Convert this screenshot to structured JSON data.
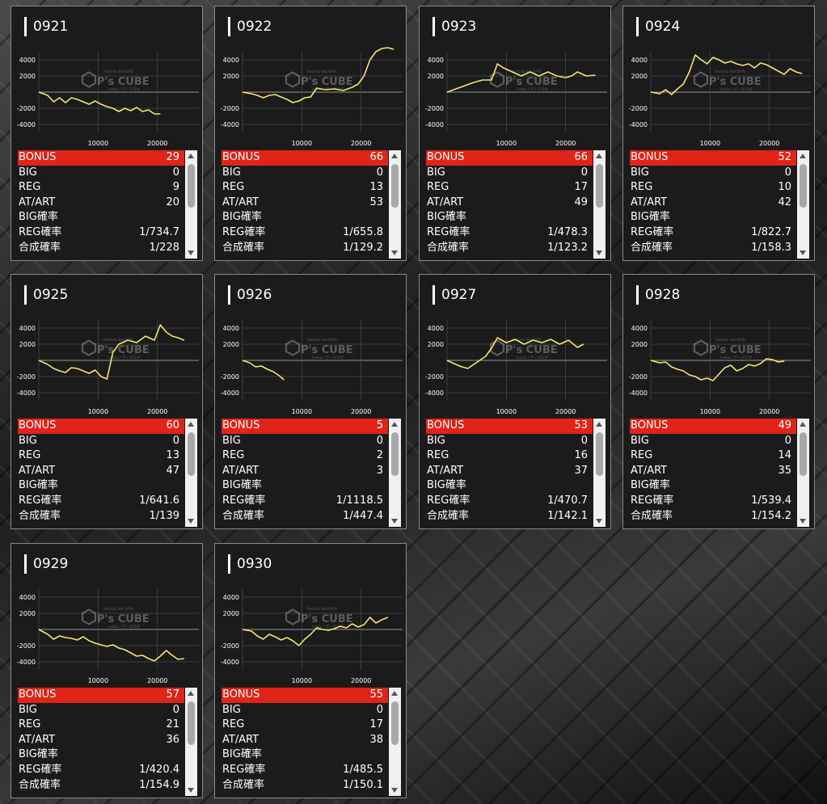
{
  "colors": {
    "accent": "#e02418",
    "line": "#f5e66a",
    "panel": "#1b1b1b"
  },
  "watermark": {
    "brand": "P's CUBE",
    "tagline": "Pachislo Slot DATA",
    "sub": "index / データロボ"
  },
  "stat_labels": {
    "bonus": "BONUS",
    "big": "BIG",
    "reg": "REG",
    "atart": "AT/ART",
    "big_rate": "BIG確率",
    "reg_rate": "REG確率",
    "total_rate": "合成確率"
  },
  "axis": {
    "y_ticks": [
      "4000",
      "2000",
      "-2000",
      "-4000"
    ],
    "x_ticks": [
      "10000",
      "20000"
    ]
  },
  "chart_data": [
    {
      "type": "line",
      "label": "0921",
      "xlim": [
        0,
        27000
      ],
      "ylim": [
        -5000,
        5000
      ],
      "x": [
        0,
        1500,
        2500,
        3500,
        4500,
        5500,
        6500,
        7500,
        8500,
        9500,
        10500,
        11500,
        12500,
        13500,
        14500,
        15500,
        16500,
        17500,
        18500,
        19500,
        20500
      ],
      "y": [
        0,
        -400,
        -1200,
        -700,
        -1300,
        -700,
        -900,
        -1200,
        -1500,
        -1100,
        -1500,
        -1800,
        -2000,
        -2400,
        -2000,
        -2300,
        -1900,
        -2400,
        -2200,
        -2700,
        -2700
      ]
    },
    {
      "type": "line",
      "label": "0922",
      "xlim": [
        0,
        27000
      ],
      "ylim": [
        -5000,
        5000
      ],
      "x": [
        0,
        1500,
        2500,
        3500,
        4500,
        5500,
        6500,
        7500,
        8500,
        9500,
        10500,
        11500,
        12500,
        14000,
        15500,
        17000,
        18500,
        19500,
        20500,
        21500,
        22500,
        23500,
        24500,
        25500
      ],
      "y": [
        0,
        -200,
        -400,
        -700,
        -400,
        -300,
        -600,
        -900,
        -1300,
        -1100,
        -700,
        -600,
        500,
        300,
        400,
        200,
        600,
        1000,
        2000,
        4000,
        5000,
        5400,
        5500,
        5300
      ]
    },
    {
      "type": "line",
      "label": "0923",
      "xlim": [
        0,
        27000
      ],
      "ylim": [
        -5000,
        5000
      ],
      "x": [
        0,
        1500,
        3000,
        4500,
        6000,
        7500,
        8500,
        9500,
        11000,
        12500,
        14000,
        15500,
        17000,
        18500,
        20000,
        21000,
        22000,
        23500,
        25000
      ],
      "y": [
        0,
        400,
        800,
        1200,
        1500,
        1500,
        3500,
        3000,
        2500,
        2000,
        2500,
        2000,
        2500,
        2000,
        1800,
        2000,
        2500,
        2000,
        2100
      ]
    },
    {
      "type": "line",
      "label": "0924",
      "xlim": [
        0,
        27000
      ],
      "ylim": [
        -5000,
        5000
      ],
      "x": [
        0,
        1500,
        2500,
        3500,
        4500,
        5500,
        6500,
        7500,
        8500,
        9500,
        10500,
        11500,
        12500,
        13500,
        14500,
        15500,
        16500,
        17500,
        18500,
        19500,
        20500,
        21500,
        22500,
        23500,
        24500,
        25500
      ],
      "y": [
        0,
        -200,
        300,
        -300,
        400,
        1000,
        2500,
        4600,
        4000,
        3500,
        4300,
        4000,
        3600,
        3800,
        3500,
        3300,
        3500,
        3000,
        3600,
        3400,
        3000,
        2600,
        2200,
        2900,
        2500,
        2300
      ]
    },
    {
      "type": "line",
      "label": "0925",
      "xlim": [
        0,
        27000
      ],
      "ylim": [
        -5000,
        5000
      ],
      "x": [
        0,
        1500,
        2500,
        3500,
        4500,
        5500,
        6500,
        7500,
        8500,
        9500,
        10500,
        11500,
        12500,
        13500,
        15000,
        16500,
        18000,
        19500,
        20500,
        21500,
        22500,
        23500,
        24500
      ],
      "y": [
        0,
        -500,
        -1000,
        -1300,
        -1500,
        -900,
        -1000,
        -1300,
        -1600,
        -1200,
        -2000,
        -2300,
        1000,
        2000,
        2500,
        2200,
        3000,
        2500,
        4400,
        3500,
        3000,
        2800,
        2500
      ]
    },
    {
      "type": "line",
      "label": "0926",
      "xlim": [
        0,
        27000
      ],
      "ylim": [
        -5000,
        5000
      ],
      "x": [
        0,
        1200,
        2200,
        3200,
        4200,
        5200,
        6200,
        7000
      ],
      "y": [
        0,
        -300,
        -800,
        -700,
        -1100,
        -1400,
        -1900,
        -2400
      ]
    },
    {
      "type": "line",
      "label": "0927",
      "xlim": [
        0,
        27000
      ],
      "ylim": [
        -5000,
        5000
      ],
      "x": [
        0,
        1500,
        2500,
        3500,
        4500,
        5500,
        6500,
        7500,
        8500,
        10000,
        11500,
        13000,
        14500,
        16000,
        17500,
        19000,
        20500,
        22000,
        23000
      ],
      "y": [
        0,
        -500,
        -800,
        -1000,
        -500,
        0,
        500,
        1500,
        2800,
        2200,
        2600,
        2000,
        2500,
        2200,
        2600,
        2000,
        2500,
        1600,
        2000
      ]
    },
    {
      "type": "line",
      "label": "0928",
      "xlim": [
        0,
        27000
      ],
      "ylim": [
        -5000,
        5000
      ],
      "x": [
        0,
        1500,
        2500,
        3500,
        4500,
        5500,
        6500,
        7500,
        8500,
        9500,
        10500,
        11500,
        12500,
        13500,
        14500,
        15500,
        16500,
        17500,
        18500,
        19500,
        20500,
        21500,
        22500
      ],
      "y": [
        0,
        -300,
        -200,
        -800,
        -1100,
        -1300,
        -1800,
        -2000,
        -2400,
        -2200,
        -2500,
        -1700,
        -900,
        -600,
        -1300,
        -1000,
        -500,
        -700,
        -400,
        200,
        100,
        -200,
        -100
      ]
    },
    {
      "type": "line",
      "label": "0929",
      "xlim": [
        0,
        27000
      ],
      "ylim": [
        -5000,
        5000
      ],
      "x": [
        0,
        1500,
        2500,
        3500,
        4500,
        5500,
        6500,
        7500,
        8500,
        9500,
        10500,
        11500,
        12500,
        13500,
        14500,
        15500,
        16500,
        17500,
        18500,
        19500,
        20500,
        21500,
        22500,
        23500,
        24500
      ],
      "y": [
        0,
        -600,
        -1200,
        -800,
        -1000,
        -1100,
        -1300,
        -900,
        -1400,
        -1700,
        -1900,
        -2100,
        -1900,
        -2300,
        -2500,
        -2900,
        -3300,
        -3200,
        -3600,
        -3900,
        -3300,
        -2600,
        -3200,
        -3700,
        -3600
      ]
    },
    {
      "type": "line",
      "label": "0930",
      "xlim": [
        0,
        27000
      ],
      "ylim": [
        -5000,
        5000
      ],
      "x": [
        0,
        1500,
        2500,
        3500,
        4500,
        5500,
        6500,
        7500,
        8500,
        9500,
        10500,
        11500,
        12500,
        13500,
        14500,
        15500,
        16500,
        17500,
        18500,
        19500,
        20500,
        21500,
        22500,
        23500,
        24500
      ],
      "y": [
        0,
        -200,
        -800,
        -1200,
        -600,
        -900,
        -1300,
        -1000,
        -1400,
        -2000,
        -1200,
        -600,
        200,
        0,
        -100,
        100,
        400,
        200,
        700,
        300,
        600,
        1500,
        800,
        1200,
        1500
      ]
    }
  ],
  "machines": [
    {
      "id": "0921",
      "bonus": "29",
      "big": "0",
      "reg": "9",
      "atart": "20",
      "big_rate": "",
      "reg_rate": "1/734.7",
      "total_rate": "1/228"
    },
    {
      "id": "0922",
      "bonus": "66",
      "big": "0",
      "reg": "13",
      "atart": "53",
      "big_rate": "",
      "reg_rate": "1/655.8",
      "total_rate": "1/129.2"
    },
    {
      "id": "0923",
      "bonus": "66",
      "big": "0",
      "reg": "17",
      "atart": "49",
      "big_rate": "",
      "reg_rate": "1/478.3",
      "total_rate": "1/123.2"
    },
    {
      "id": "0924",
      "bonus": "52",
      "big": "0",
      "reg": "10",
      "atart": "42",
      "big_rate": "",
      "reg_rate": "1/822.7",
      "total_rate": "1/158.3"
    },
    {
      "id": "0925",
      "bonus": "60",
      "big": "0",
      "reg": "13",
      "atart": "47",
      "big_rate": "",
      "reg_rate": "1/641.6",
      "total_rate": "1/139"
    },
    {
      "id": "0926",
      "bonus": "5",
      "big": "0",
      "reg": "2",
      "atart": "3",
      "big_rate": "",
      "reg_rate": "1/1118.5",
      "total_rate": "1/447.4"
    },
    {
      "id": "0927",
      "bonus": "53",
      "big": "0",
      "reg": "16",
      "atart": "37",
      "big_rate": "",
      "reg_rate": "1/470.7",
      "total_rate": "1/142.1"
    },
    {
      "id": "0928",
      "bonus": "49",
      "big": "0",
      "reg": "14",
      "atart": "35",
      "big_rate": "",
      "reg_rate": "1/539.4",
      "total_rate": "1/154.2"
    },
    {
      "id": "0929",
      "bonus": "57",
      "big": "0",
      "reg": "21",
      "atart": "36",
      "big_rate": "",
      "reg_rate": "1/420.4",
      "total_rate": "1/154.9"
    },
    {
      "id": "0930",
      "bonus": "55",
      "big": "0",
      "reg": "17",
      "atart": "38",
      "big_rate": "",
      "reg_rate": "1/485.5",
      "total_rate": "1/150.1"
    }
  ]
}
